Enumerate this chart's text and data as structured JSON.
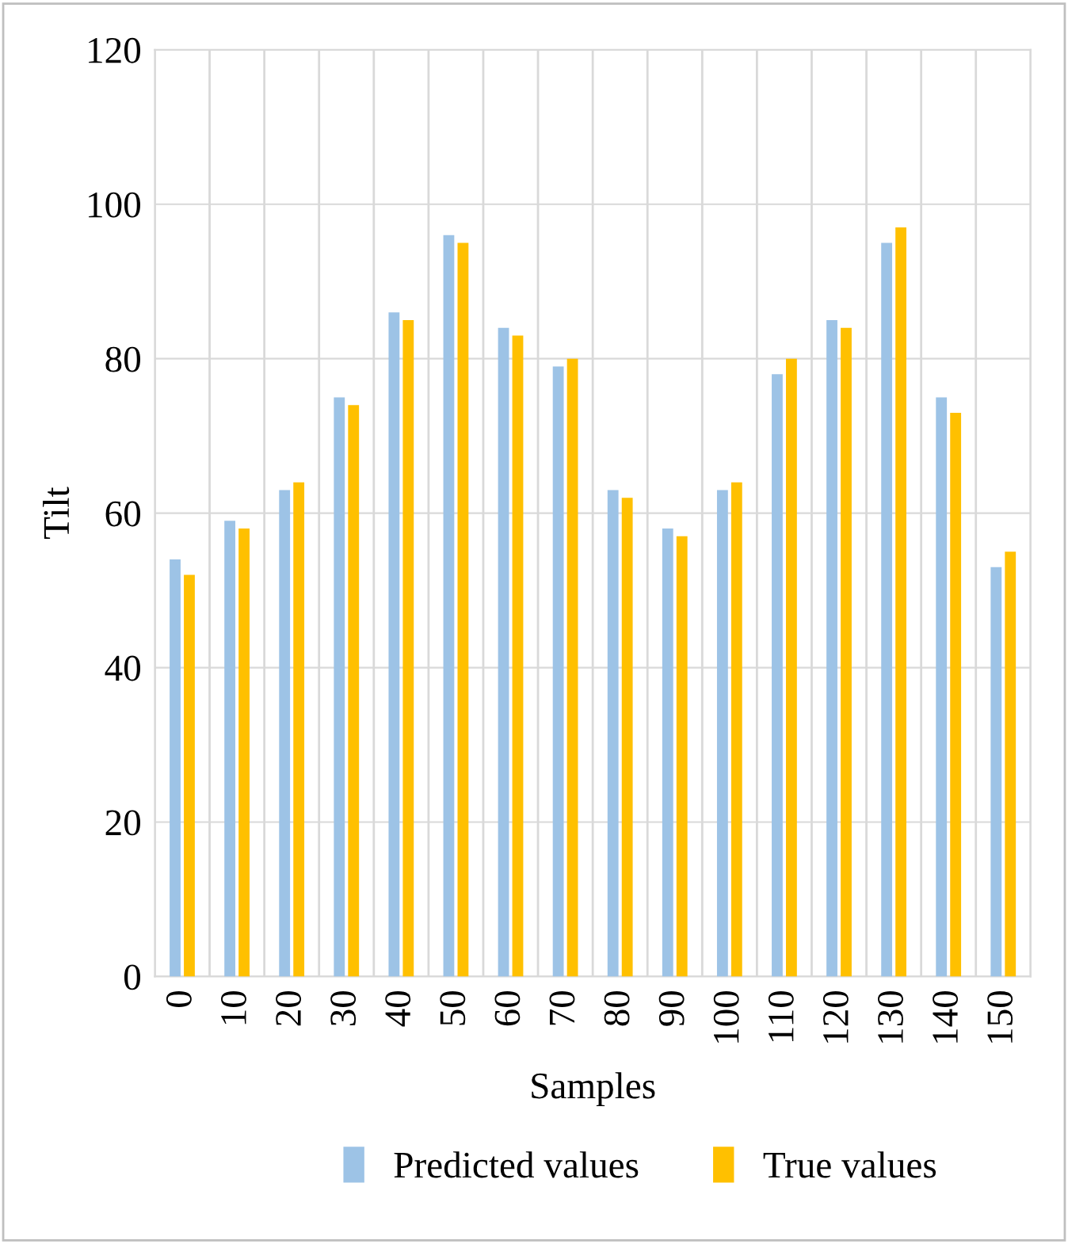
{
  "chart_data": {
    "type": "bar",
    "xlabel": "Samples",
    "ylabel": "Tilt",
    "categories": [
      "0",
      "10",
      "20",
      "30",
      "40",
      "50",
      "60",
      "70",
      "80",
      "90",
      "100",
      "110",
      "120",
      "130",
      "140",
      "150"
    ],
    "series": [
      {
        "name": "Predicted values",
        "color": "#9dc3e6",
        "values": [
          54,
          59,
          63,
          75,
          86,
          96,
          84,
          79,
          63,
          58,
          63,
          78,
          85,
          95,
          75,
          53
        ]
      },
      {
        "name": "True values",
        "color": "#ffc000",
        "values": [
          52,
          58,
          64,
          74,
          85,
          95,
          83,
          80,
          62,
          57,
          64,
          80,
          84,
          97,
          73,
          55
        ]
      }
    ],
    "ylim": [
      0,
      120
    ],
    "yticks": [
      0,
      20,
      40,
      60,
      80,
      100,
      120
    ],
    "grid": true,
    "legend": "bottom"
  }
}
